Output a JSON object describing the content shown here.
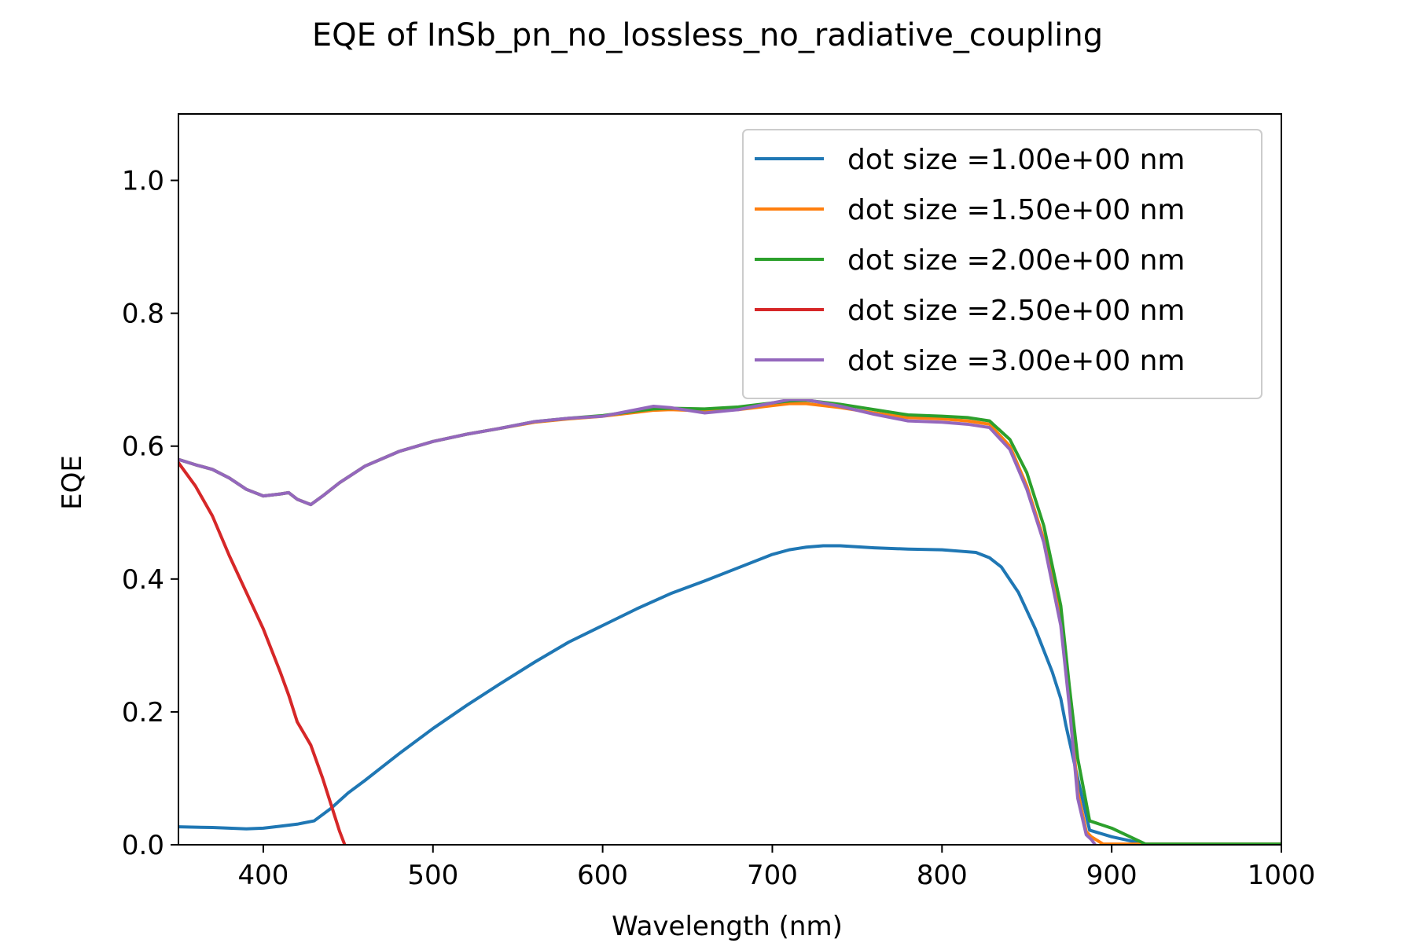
{
  "chart_data": {
    "type": "line",
    "title": "EQE of  InSb_pn_no_lossless_no_radiative_coupling",
    "xlabel": "Wavelength (nm)",
    "ylabel": "EQE",
    "xlim": [
      350,
      1000
    ],
    "ylim": [
      0,
      1.1
    ],
    "xticks": [
      400,
      500,
      600,
      700,
      800,
      900,
      1000
    ],
    "xtick_labels": [
      "400",
      "500",
      "600",
      "700",
      "800",
      "900",
      "1000"
    ],
    "yticks": [
      0.0,
      0.2,
      0.4,
      0.6,
      0.8,
      1.0
    ],
    "ytick_labels": [
      "0.0",
      "0.2",
      "0.4",
      "0.6",
      "0.8",
      "1.0"
    ],
    "grid": false,
    "legend_position": "top-right",
    "series": [
      {
        "name": "dot size =1.00e+00 nm",
        "color": "#1f77b4",
        "x": [
          350,
          370,
          390,
          400,
          410,
          420,
          430,
          440,
          450,
          460,
          470,
          480,
          500,
          520,
          540,
          560,
          580,
          600,
          620,
          640,
          660,
          680,
          700,
          710,
          720,
          730,
          740,
          760,
          780,
          800,
          810,
          820,
          828,
          835,
          845,
          855,
          865,
          870,
          873,
          880,
          887,
          900,
          920,
          1000
        ],
        "y": [
          0.027,
          0.026,
          0.024,
          0.025,
          0.028,
          0.031,
          0.036,
          0.055,
          0.078,
          0.097,
          0.117,
          0.137,
          0.175,
          0.21,
          0.243,
          0.275,
          0.305,
          0.33,
          0.355,
          0.378,
          0.397,
          0.417,
          0.437,
          0.444,
          0.448,
          0.45,
          0.45,
          0.447,
          0.445,
          0.444,
          0.442,
          0.44,
          0.432,
          0.418,
          0.38,
          0.325,
          0.26,
          0.22,
          0.18,
          0.1,
          0.022,
          0.012,
          0.001,
          0.001
        ]
      },
      {
        "name": "dot size =1.50e+00 nm",
        "color": "#ff7f0e",
        "x": [
          350,
          360,
          370,
          380,
          390,
          400,
          410,
          415,
          420,
          428,
          435,
          445,
          460,
          480,
          500,
          520,
          540,
          560,
          580,
          600,
          620,
          630,
          640,
          660,
          680,
          700,
          710,
          720,
          740,
          760,
          780,
          800,
          815,
          828,
          840,
          850,
          860,
          870,
          875,
          880,
          885,
          888,
          895,
          1000
        ],
        "y": [
          0.58,
          0.572,
          0.565,
          0.552,
          0.535,
          0.525,
          0.528,
          0.53,
          0.52,
          0.512,
          0.525,
          0.545,
          0.57,
          0.592,
          0.607,
          0.618,
          0.627,
          0.636,
          0.641,
          0.645,
          0.651,
          0.654,
          0.655,
          0.653,
          0.655,
          0.661,
          0.664,
          0.664,
          0.658,
          0.65,
          0.643,
          0.641,
          0.638,
          0.633,
          0.6,
          0.54,
          0.46,
          0.34,
          0.22,
          0.08,
          0.02,
          0.012,
          0.001,
          0.001
        ]
      },
      {
        "name": "dot size =2.00e+00 nm",
        "color": "#2ca02c",
        "x": [
          350,
          360,
          370,
          380,
          390,
          400,
          410,
          415,
          420,
          428,
          435,
          445,
          460,
          480,
          500,
          520,
          540,
          560,
          580,
          600,
          620,
          630,
          640,
          660,
          680,
          700,
          710,
          720,
          740,
          760,
          780,
          800,
          815,
          828,
          840,
          850,
          860,
          870,
          875,
          880,
          887,
          900,
          920,
          1000
        ],
        "y": [
          0.58,
          0.572,
          0.565,
          0.552,
          0.535,
          0.525,
          0.528,
          0.53,
          0.52,
          0.512,
          0.525,
          0.545,
          0.57,
          0.592,
          0.607,
          0.618,
          0.627,
          0.637,
          0.642,
          0.646,
          0.653,
          0.656,
          0.657,
          0.656,
          0.659,
          0.665,
          0.668,
          0.669,
          0.663,
          0.655,
          0.647,
          0.645,
          0.643,
          0.638,
          0.61,
          0.56,
          0.48,
          0.36,
          0.24,
          0.13,
          0.036,
          0.025,
          0.001,
          0.001
        ]
      },
      {
        "name": "dot size =2.50e+00 nm",
        "color": "#d62728",
        "x": [
          350,
          360,
          370,
          380,
          390,
          400,
          410,
          415,
          420,
          428,
          435,
          440,
          445,
          448
        ],
        "y": [
          0.575,
          0.54,
          0.495,
          0.435,
          0.38,
          0.325,
          0.26,
          0.225,
          0.185,
          0.15,
          0.1,
          0.06,
          0.02,
          0.0
        ]
      },
      {
        "name": "dot size =3.00e+00 nm",
        "color": "#9467bd",
        "x": [
          350,
          360,
          370,
          380,
          390,
          400,
          410,
          415,
          420,
          428,
          435,
          445,
          460,
          480,
          500,
          520,
          540,
          560,
          580,
          600,
          620,
          630,
          640,
          660,
          680,
          700,
          710,
          720,
          740,
          760,
          780,
          800,
          815,
          828,
          840,
          850,
          860,
          870,
          875,
          880,
          885,
          888,
          890
        ],
        "y": [
          0.58,
          0.572,
          0.565,
          0.552,
          0.535,
          0.525,
          0.528,
          0.53,
          0.52,
          0.512,
          0.525,
          0.545,
          0.57,
          0.592,
          0.607,
          0.618,
          0.627,
          0.637,
          0.642,
          0.645,
          0.655,
          0.66,
          0.658,
          0.65,
          0.655,
          0.665,
          0.67,
          0.67,
          0.66,
          0.648,
          0.638,
          0.636,
          0.633,
          0.628,
          0.595,
          0.535,
          0.455,
          0.33,
          0.21,
          0.07,
          0.015,
          0.008,
          0.001
        ]
      }
    ]
  }
}
